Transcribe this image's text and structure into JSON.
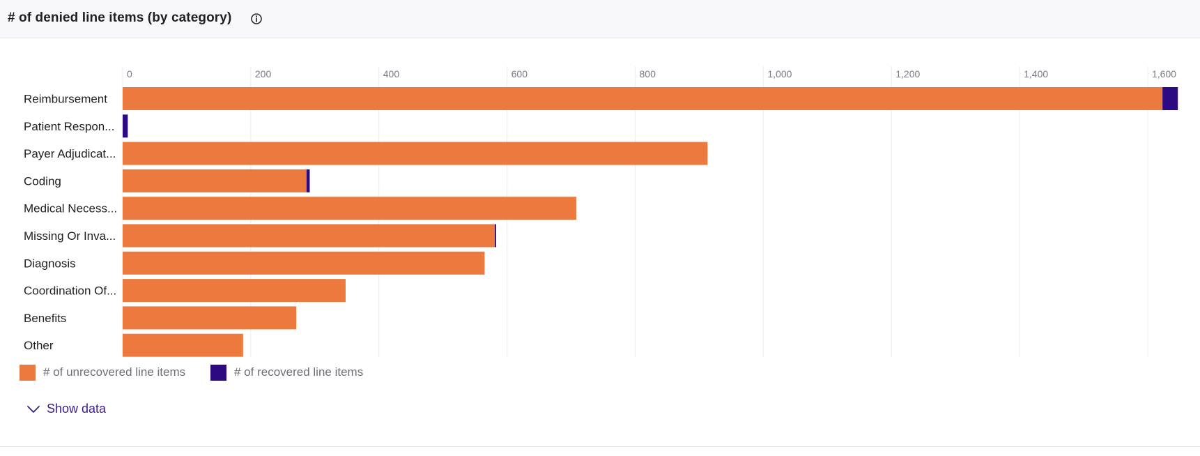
{
  "header": {
    "title": "# of denied line items (by category)",
    "info_icon": "info-circle-icon"
  },
  "chart_data": {
    "type": "bar",
    "orientation": "horizontal",
    "stacked": true,
    "categories": [
      "Reimbursement",
      "Patient Respon...",
      "Payer Adjudicat...",
      "Coding",
      "Medical Necess...",
      "Missing Or Inva...",
      "Diagnosis",
      "Coordination Of...",
      "Benefits",
      "Other"
    ],
    "series": [
      {
        "name": "# of unrecovered line items",
        "color": "#ec7a3e",
        "values": [
          1623,
          0,
          913,
          287,
          708,
          581,
          565,
          348,
          271,
          188
        ]
      },
      {
        "name": "# of recovered line items",
        "color": "#2d0a82",
        "values": [
          24,
          8,
          0,
          5,
          0,
          2,
          0,
          0,
          0,
          0
        ]
      }
    ],
    "x_ticks": [
      "0",
      "200",
      "400",
      "600",
      "800",
      "1,000",
      "1,200",
      "1,400",
      "1,600"
    ],
    "x_tick_values": [
      0,
      200,
      400,
      600,
      800,
      1000,
      1200,
      1400,
      1600
    ],
    "xlim": [
      0,
      1650
    ],
    "axis_position": "top",
    "grid": true,
    "legend_position": "bottom-left"
  },
  "footer": {
    "show_data_label": "Show data",
    "chevron_icon": "chevron-down-icon"
  }
}
